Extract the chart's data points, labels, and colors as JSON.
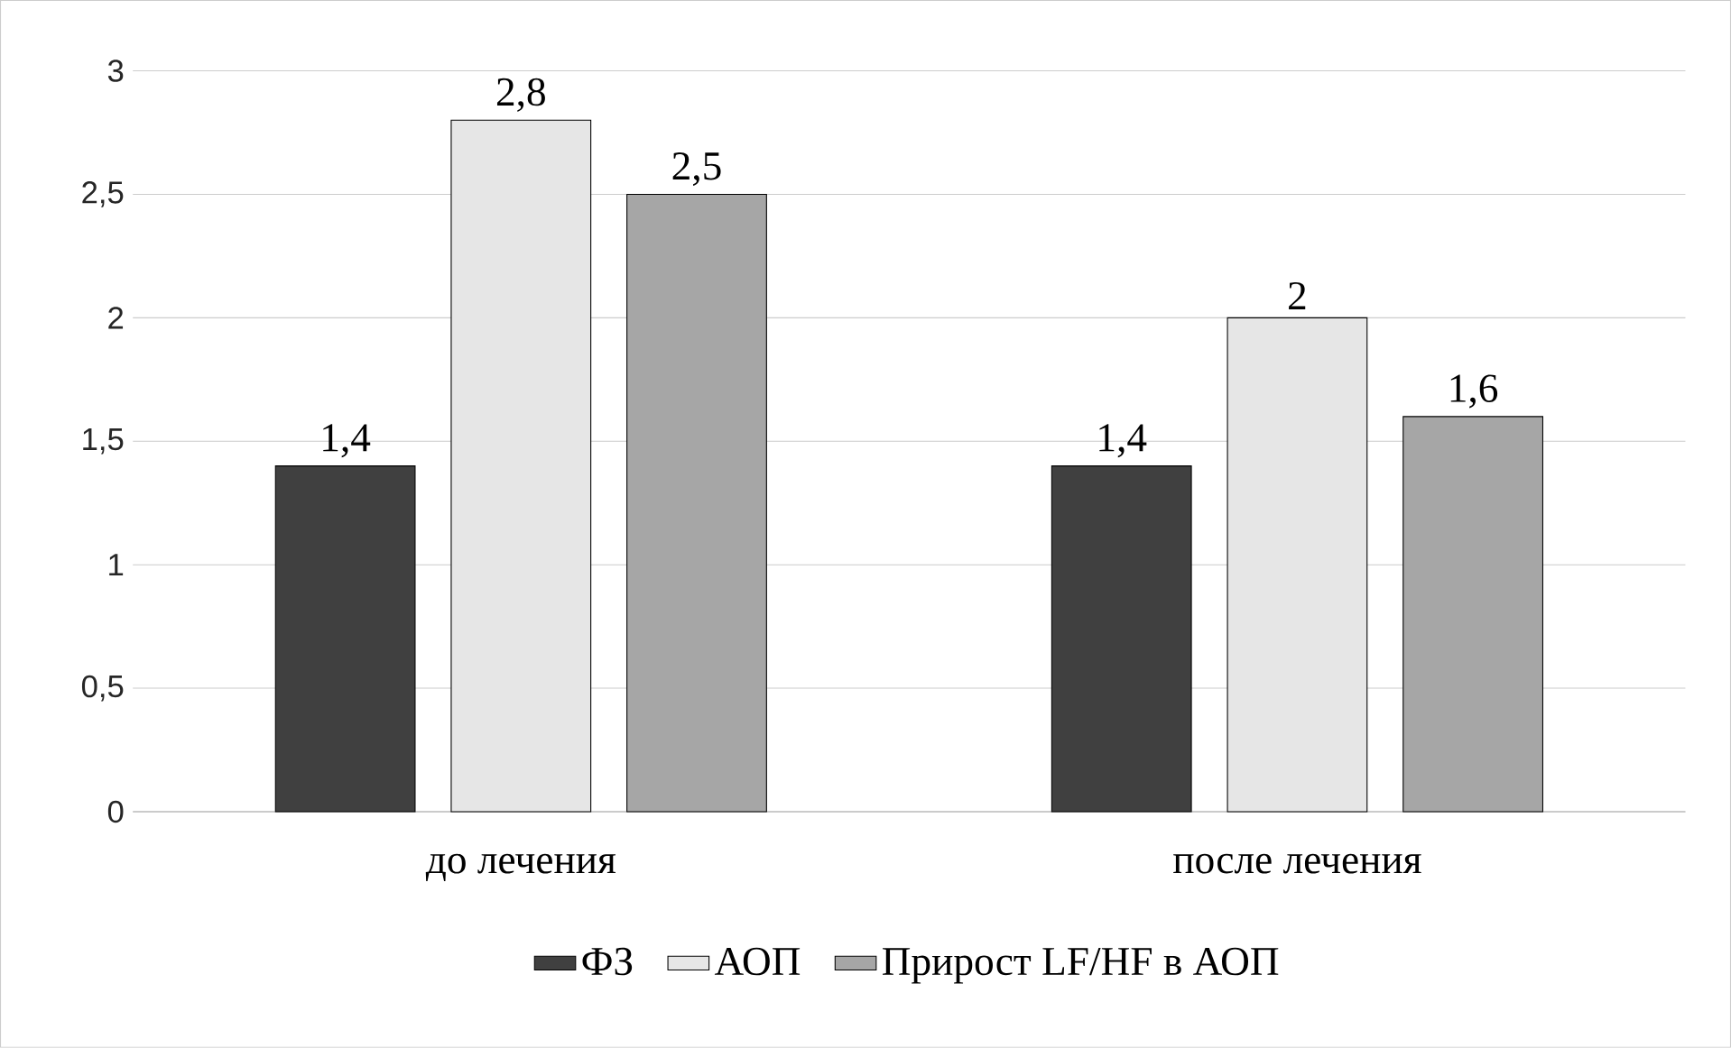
{
  "chart_data": {
    "type": "bar",
    "categories": [
      "до лечения",
      "после лечения"
    ],
    "series": [
      {
        "name": "ФЗ",
        "color": "#404040",
        "values": [
          1.4,
          1.4
        ],
        "value_labels": [
          "1,4",
          "1,4"
        ]
      },
      {
        "name": "АОП",
        "color": "#e6e6e6",
        "values": [
          2.8,
          2.0
        ],
        "value_labels": [
          "2,8",
          "2"
        ]
      },
      {
        "name": "Прирост LF/HF в АОП",
        "color": "#a6a6a6",
        "values": [
          2.5,
          1.6
        ],
        "value_labels": [
          "2,5",
          "1,6"
        ]
      }
    ],
    "ylim": [
      0,
      3
    ],
    "yticks": [
      0,
      {
        "value": 0.5,
        "label": "0,5"
      },
      1,
      {
        "value": 1.5,
        "label": "1,5"
      },
      2,
      {
        "value": 2.5,
        "label": "2,5"
      },
      3
    ],
    "grid": "y",
    "legend": "bottom"
  }
}
